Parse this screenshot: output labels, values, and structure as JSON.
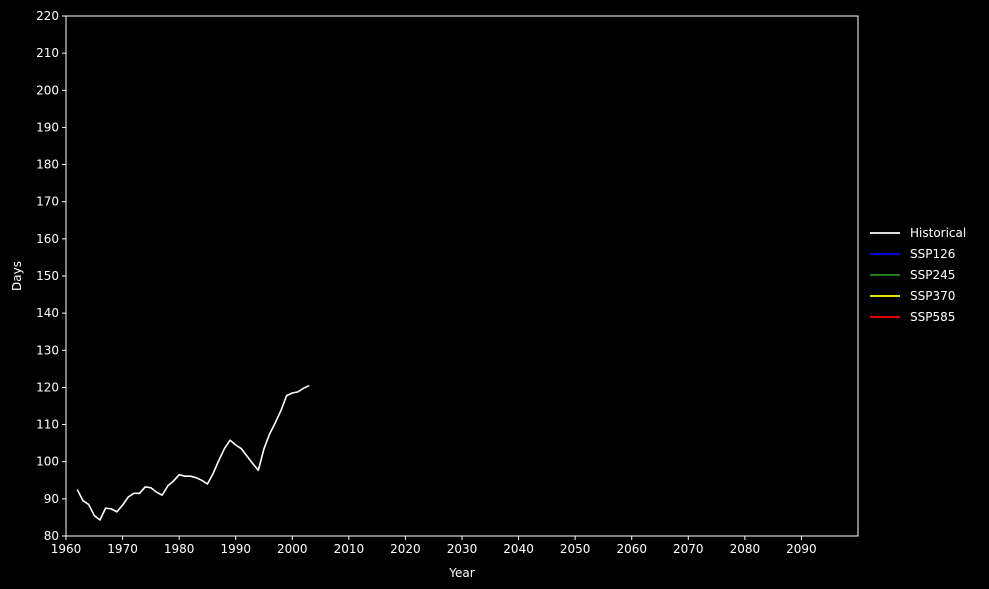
{
  "chart_data": {
    "type": "line",
    "title": "",
    "xlabel": "Year",
    "ylabel": "Days",
    "xlim": [
      1960,
      2100
    ],
    "ylim": [
      80,
      220
    ],
    "xticks": [
      1960,
      1970,
      1980,
      1990,
      2000,
      2010,
      2020,
      2030,
      2040,
      2050,
      2060,
      2070,
      2080,
      2090
    ],
    "yticks": [
      80,
      90,
      100,
      110,
      120,
      130,
      140,
      150,
      160,
      170,
      180,
      190,
      200,
      210,
      220
    ],
    "grid": false,
    "background": "#000000",
    "legend_position": "right",
    "series": [
      {
        "name": "Historical",
        "color": "#ffffff",
        "x": [
          1962,
          1963,
          1964,
          1965,
          1966,
          1967,
          1968,
          1969,
          1970,
          1971,
          1972,
          1973,
          1974,
          1975,
          1976,
          1977,
          1978,
          1979,
          1980,
          1981,
          1982,
          1983,
          1984,
          1985,
          1986,
          1987,
          1988,
          1989,
          1990,
          1991,
          1992,
          1993,
          1994,
          1995,
          1996,
          1997,
          1998,
          1999,
          2000,
          2001,
          2002,
          2003
        ],
        "y": [
          92.5,
          89.5,
          88.5,
          85.5,
          84.3,
          87.5,
          87.3,
          86.5,
          88.3,
          90.5,
          91.5,
          91.5,
          93.2,
          93.0,
          91.8,
          91.0,
          93.5,
          94.8,
          96.5,
          96.1,
          96.1,
          95.7,
          95.0,
          94.0,
          96.8,
          100.3,
          103.5,
          105.8,
          104.5,
          103.5,
          101.5,
          99.5,
          97.7,
          103.5,
          107.5,
          110.5,
          113.8,
          117.8,
          118.5,
          118.8,
          119.8,
          120.5
        ]
      },
      {
        "name": "SSP126",
        "color": "#0000ff",
        "x": [],
        "y": []
      },
      {
        "name": "SSP245",
        "color": "#228b22",
        "x": [],
        "y": []
      },
      {
        "name": "SSP370",
        "color": "#ffff00",
        "x": [],
        "y": []
      },
      {
        "name": "SSP585",
        "color": "#ff0000",
        "x": [],
        "y": []
      }
    ]
  }
}
